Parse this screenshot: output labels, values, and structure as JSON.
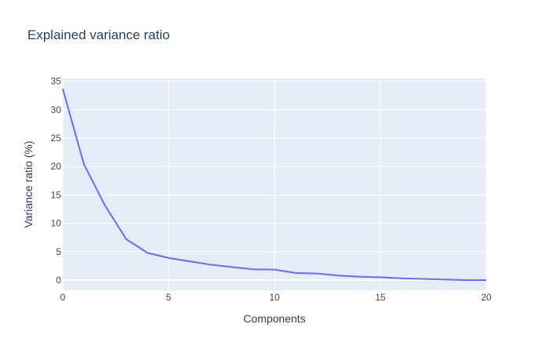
{
  "chart_data": {
    "type": "line",
    "title": "Explained variance ratio",
    "xlabel": "Components",
    "ylabel": "Variance ratio (%)",
    "xlim": [
      0,
      20
    ],
    "ylim": [
      -1.8,
      35.5
    ],
    "x_ticks": [
      0,
      5,
      10,
      15,
      20
    ],
    "y_ticks": [
      0,
      5,
      10,
      15,
      20,
      25,
      30,
      35
    ],
    "grid": true,
    "legend": "none",
    "series": [
      {
        "x": [
          0,
          1,
          2,
          3,
          4,
          5,
          6,
          7,
          8,
          9,
          10,
          11,
          12,
          13,
          14,
          15,
          16,
          17,
          18,
          19,
          20
        ],
        "values": [
          33.7,
          20.4,
          13.1,
          7.2,
          4.8,
          3.9,
          3.3,
          2.7,
          2.3,
          1.9,
          1.85,
          1.25,
          1.15,
          0.8,
          0.6,
          0.5,
          0.3,
          0.2,
          0.1,
          0.0,
          0.0
        ],
        "color": "#636efa"
      }
    ],
    "colors": {
      "plot_background": "#e5ecf6",
      "grid": "#ffffff",
      "text": "#2a3f5f",
      "tick_text": "#444444"
    }
  }
}
